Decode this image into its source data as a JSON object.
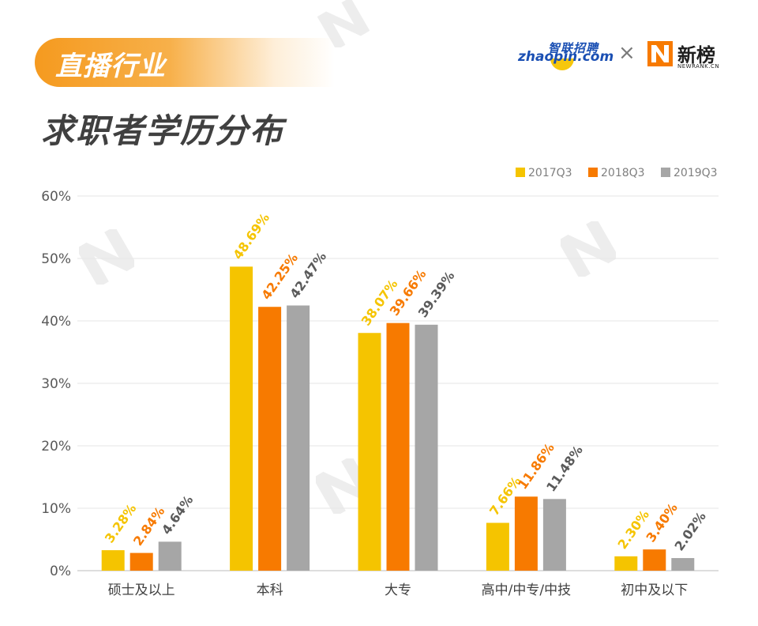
{
  "header": {
    "banner": "直播行业",
    "title": "求职者学历分布"
  },
  "brand": {
    "zhaopin_cn": "智联招聘",
    "zhaopin_en": "zhaopin.com",
    "separator": "×",
    "newrank_cn": "新榜",
    "newrank_en": "NEWRANK.CN"
  },
  "colors": {
    "s2017": "#f5c400",
    "s2018": "#f77a00",
    "s2019": "#a6a6a6",
    "banner": "#f59a1f",
    "title": "#404040"
  },
  "chart_data": {
    "type": "bar",
    "title": "求职者学历分布",
    "categories": [
      "硕士及以上",
      "本科",
      "大专",
      "高中/中专/中技",
      "初中及以下"
    ],
    "series": [
      {
        "name": "2017Q3",
        "values": [
          3.28,
          48.69,
          38.07,
          7.66,
          2.3
        ],
        "labels": [
          "3.28%",
          "48.69%",
          "38.07%",
          "7.66%",
          "2.30%"
        ]
      },
      {
        "name": "2018Q3",
        "values": [
          2.84,
          42.25,
          39.66,
          11.86,
          3.4
        ],
        "labels": [
          "2.84%",
          "42.25%",
          "39.66%",
          "11.86%",
          "3.40%"
        ]
      },
      {
        "name": "2019Q3",
        "values": [
          4.64,
          42.47,
          39.39,
          11.48,
          2.02
        ],
        "labels": [
          "4.64%",
          "42.47%",
          "39.39%",
          "11.48%",
          "2.02%"
        ]
      }
    ],
    "ylim": [
      0,
      60
    ],
    "yticks": [
      0,
      10,
      20,
      30,
      40,
      50,
      60
    ],
    "ytick_labels": [
      "0%",
      "10%",
      "20%",
      "30%",
      "40%",
      "50%",
      "60%"
    ],
    "grid": true,
    "legend": "top-right",
    "xlabel": "",
    "ylabel": ""
  }
}
